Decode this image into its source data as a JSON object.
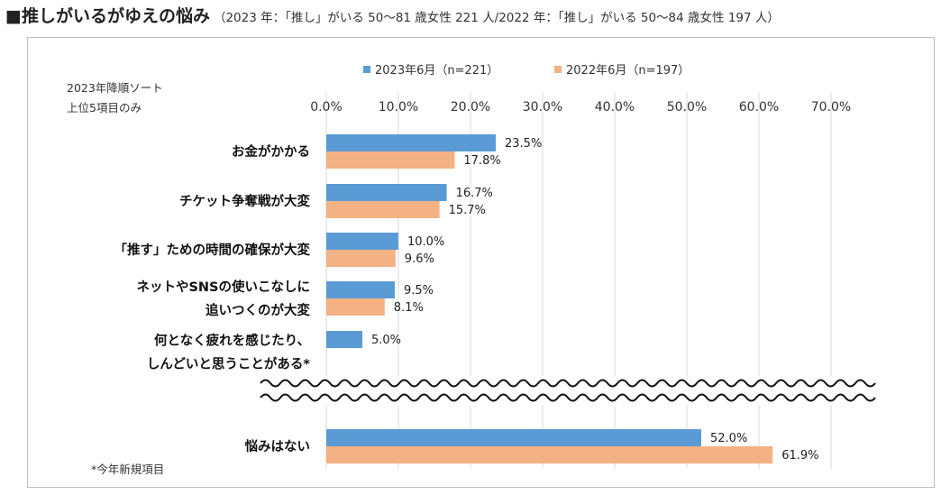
{
  "title": "■推しがいるがゆえの悩み",
  "subtitle": "（2023 年：「推し」がいる 50〜81 歳女性 221 人/2022 年：「推し」がいる 50〜84 歳女性 197 人）",
  "sort_note": [
    "2023年降順ソート",
    "上位5項目のみ"
  ],
  "footnote": "*今年新規項目",
  "colors": {
    "series_2023": "#5b9bd5",
    "series_2022": "#f4b183",
    "grid": "#d9d9d9"
  },
  "chart_data": {
    "type": "bar",
    "orientation": "horizontal",
    "xlim": [
      0,
      70
    ],
    "ticks": [
      "0.0%",
      "10.0%",
      "20.0%",
      "30.0%",
      "40.0%",
      "50.0%",
      "60.0%",
      "70.0%"
    ],
    "tick_values": [
      0,
      10,
      20,
      30,
      40,
      50,
      60,
      70
    ],
    "axis_break": "between last two categories",
    "categories": [
      [
        "お金がかかる"
      ],
      [
        "チケット争奪戦が大変"
      ],
      [
        "「推す」ための時間の確保が大変"
      ],
      [
        "ネットやSNSの使いこなしに",
        "追いつくのが大変"
      ],
      [
        "何となく疲れを感じたり、",
        "しんどいと思うことがある*"
      ],
      [
        "悩みはない"
      ]
    ],
    "series": [
      {
        "name": "2023年6月（n=221）",
        "values": [
          23.5,
          16.7,
          10.0,
          9.5,
          5.0,
          52.0
        ],
        "labels": [
          "23.5%",
          "16.7%",
          "10.0%",
          "9.5%",
          "5.0%",
          "52.0%"
        ]
      },
      {
        "name": "2022年6月（n=197）",
        "values": [
          17.8,
          15.7,
          9.6,
          8.1,
          null,
          61.9
        ],
        "labels": [
          "17.8%",
          "15.7%",
          "9.6%",
          "8.1%",
          null,
          "61.9%"
        ]
      }
    ]
  }
}
